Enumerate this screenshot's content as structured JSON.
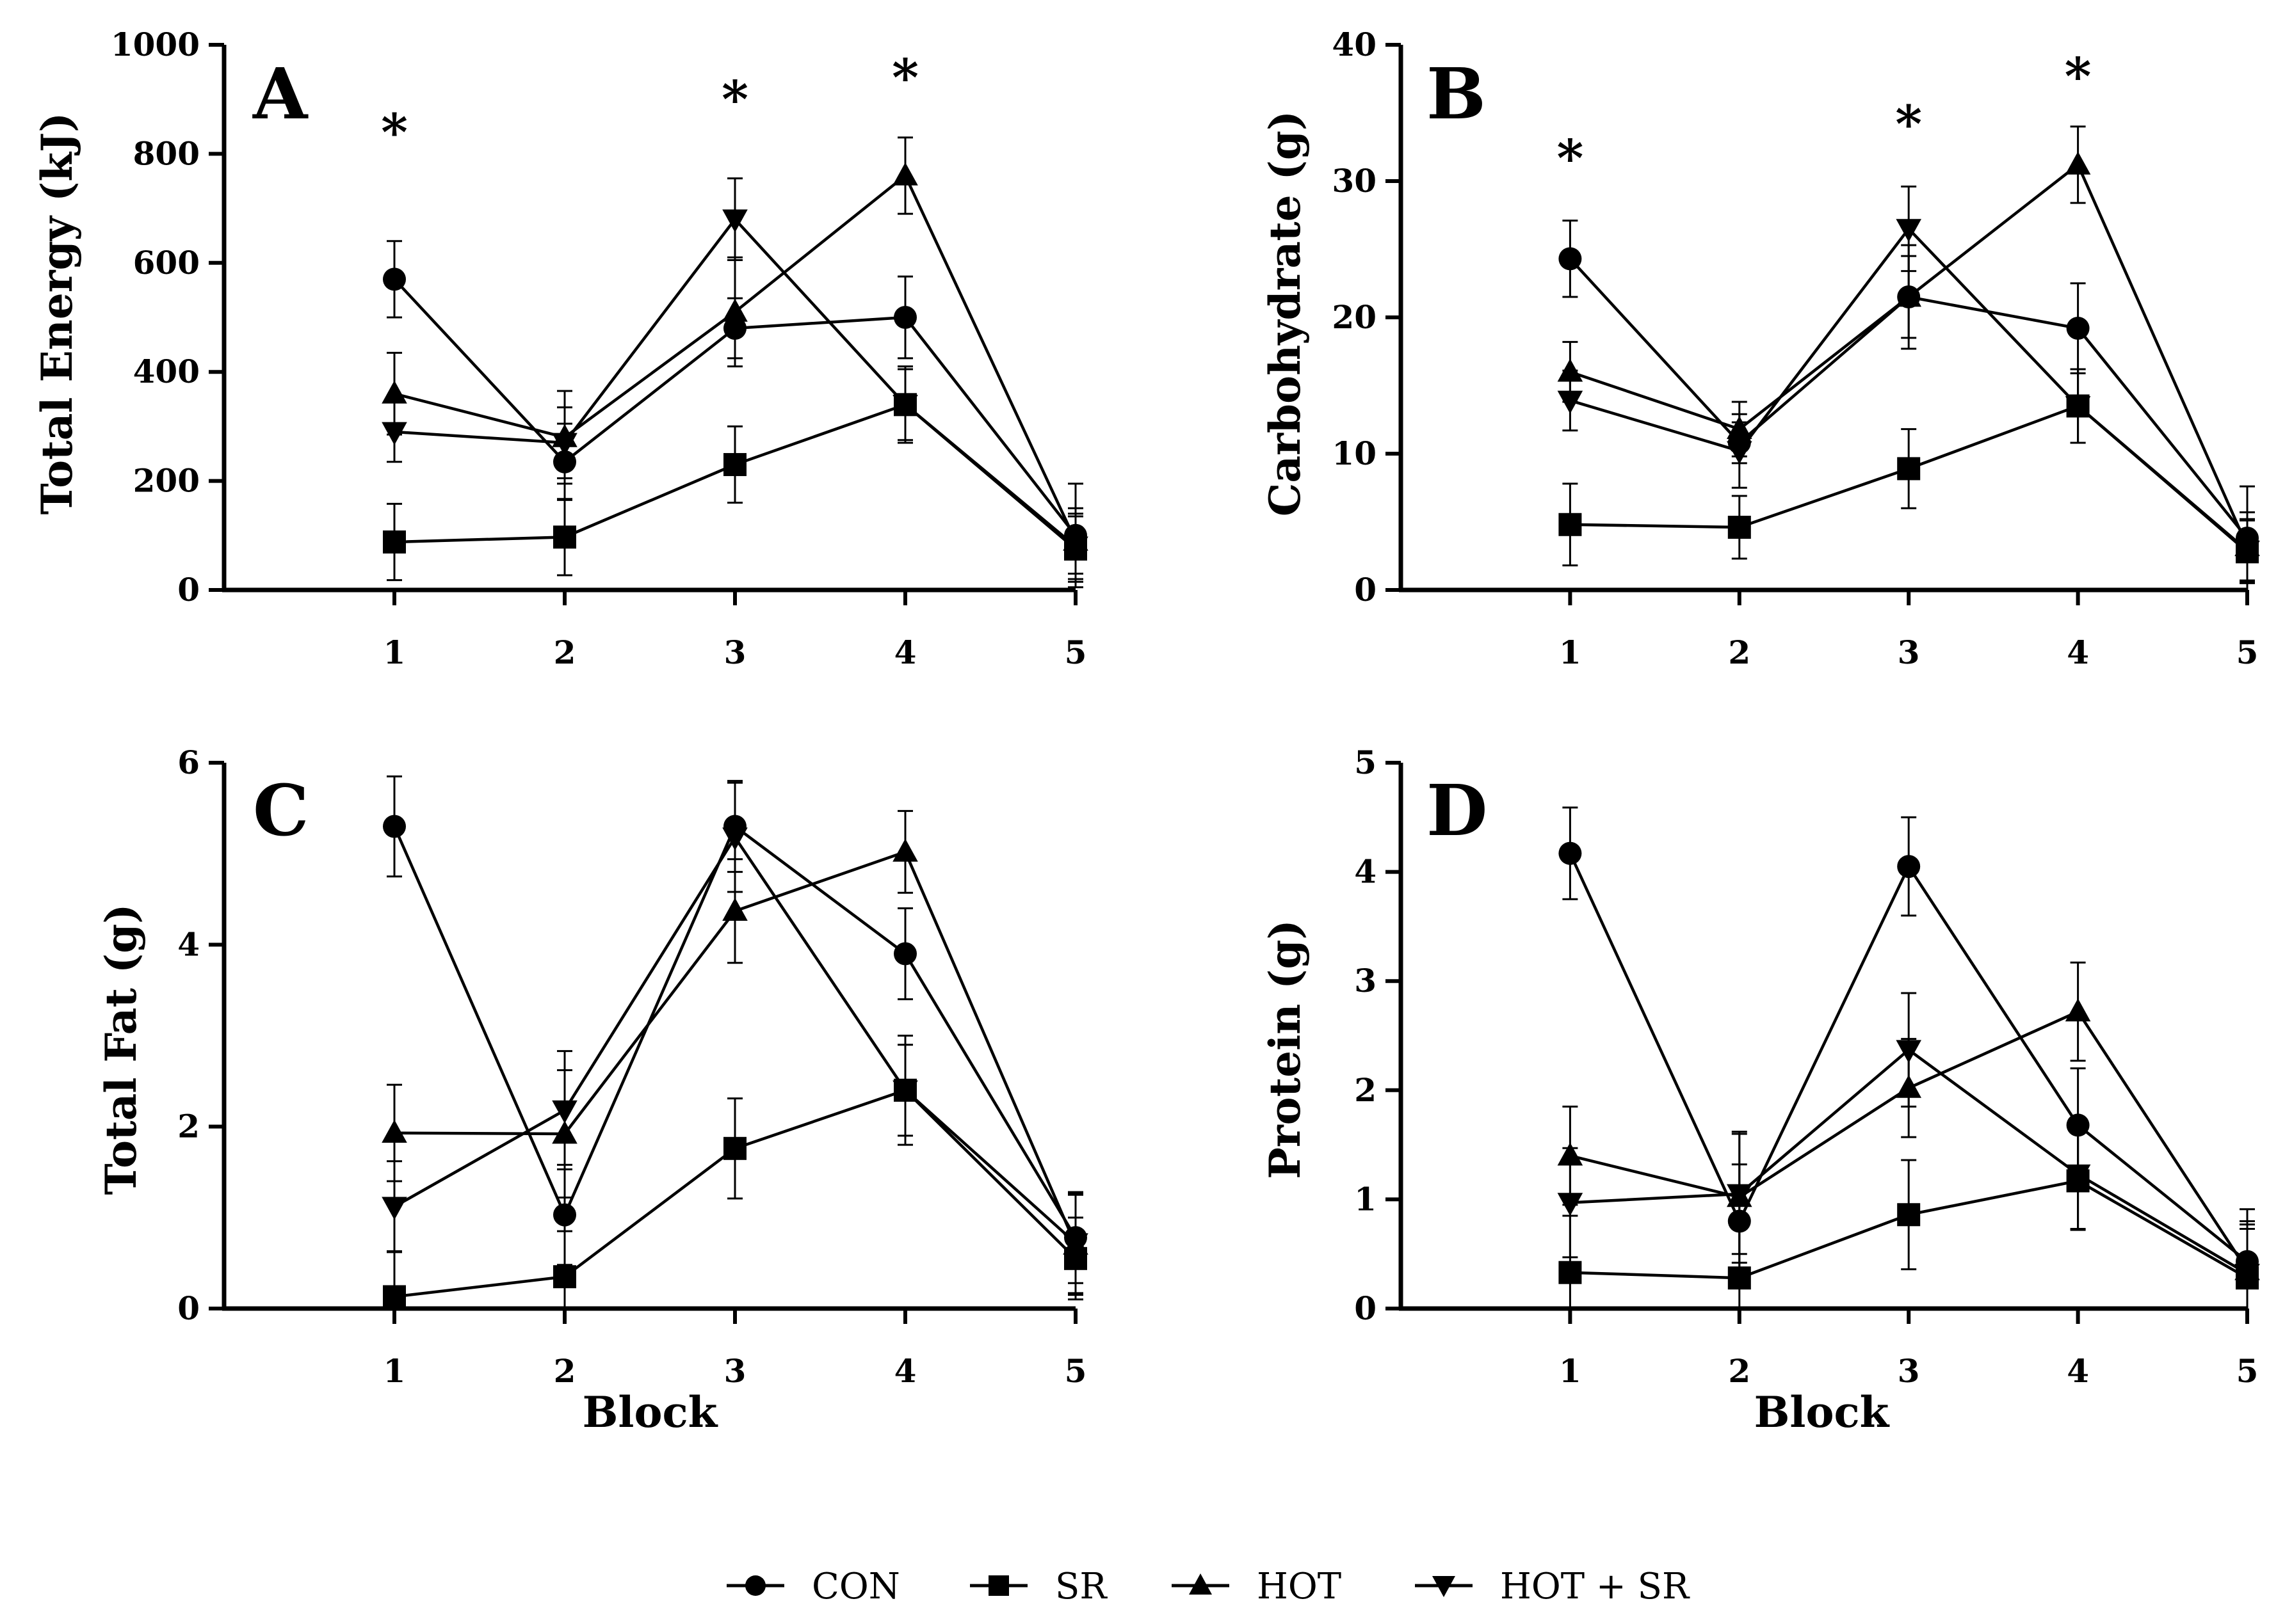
{
  "figure": {
    "series_names": [
      "CON",
      "SR",
      "HOT",
      "HOT + SR"
    ],
    "series_markers": [
      "circle",
      "square",
      "triangle-up",
      "triangle-down"
    ],
    "colors": {
      "line": "#000000",
      "background": "#ffffff"
    }
  },
  "chart_data": [
    {
      "type": "line",
      "panel": "A",
      "title": "",
      "xlabel": "",
      "ylabel": "Total Energy (kJ)",
      "x": [
        1,
        2,
        3,
        4,
        5
      ],
      "xticks": [
        "1",
        "2",
        "3",
        "4",
        "5"
      ],
      "xlim": [
        0,
        5
      ],
      "ylim": [
        0,
        1000
      ],
      "yticks": [
        "0",
        "200",
        "400",
        "600",
        "800",
        "1000"
      ],
      "significance": [
        {
          "x": 1,
          "y": 860,
          "label": "*"
        },
        {
          "x": 3,
          "y": 920,
          "label": "*"
        },
        {
          "x": 4,
          "y": 960,
          "label": "*"
        }
      ],
      "series": [
        {
          "name": "CON",
          "values": [
            570,
            235,
            480,
            500,
            100
          ],
          "errors": [
            70,
            70,
            55,
            75,
            95
          ]
        },
        {
          "name": "SR",
          "values": [
            88,
            97,
            230,
            340,
            75
          ],
          "errors": [
            70,
            70,
            70,
            65,
            60
          ]
        },
        {
          "name": "HOT",
          "values": [
            360,
            280,
            510,
            760,
            90
          ],
          "errors": [
            75,
            85,
            100,
            70,
            60
          ]
        },
        {
          "name": "HOT + SR",
          "values": [
            290,
            270,
            680,
            340,
            80
          ],
          "errors": [
            55,
            65,
            75,
            70,
            60
          ]
        }
      ]
    },
    {
      "type": "line",
      "panel": "B",
      "title": "",
      "xlabel": "",
      "ylabel": "Carbohydrate (g)",
      "x": [
        1,
        2,
        3,
        4,
        5
      ],
      "xticks": [
        "1",
        "2",
        "3",
        "4",
        "5"
      ],
      "xlim": [
        0,
        5
      ],
      "ylim": [
        0,
        40
      ],
      "yticks": [
        "0",
        "10",
        "20",
        "30",
        "40"
      ],
      "significance": [
        {
          "x": 1,
          "y": 32.5,
          "label": "*"
        },
        {
          "x": 3,
          "y": 35,
          "label": "*"
        },
        {
          "x": 4,
          "y": 38.5,
          "label": "*"
        }
      ],
      "series": [
        {
          "name": "CON",
          "values": [
            24.3,
            10.8,
            21.5,
            19.2,
            3.8
          ],
          "errors": [
            2.8,
            1.5,
            3.0,
            3.3,
            3.8
          ]
        },
        {
          "name": "SR",
          "values": [
            4.8,
            4.6,
            8.9,
            13.5,
            2.8
          ],
          "errors": [
            3.0,
            2.3,
            2.9,
            2.7,
            2.3
          ]
        },
        {
          "name": "HOT",
          "values": [
            16.0,
            11.8,
            21.5,
            31.2,
            3.2
          ],
          "errors": [
            2.2,
            2.0,
            3.8,
            2.8,
            2.5
          ]
        },
        {
          "name": "HOT + SR",
          "values": [
            13.9,
            10.2,
            26.5,
            13.5,
            2.9
          ],
          "errors": [
            2.2,
            2.7,
            3.1,
            2.7,
            2.3
          ]
        }
      ]
    },
    {
      "type": "line",
      "panel": "C",
      "title": "",
      "xlabel": "Block",
      "ylabel": "Total Fat (g)",
      "x": [
        1,
        2,
        3,
        4,
        5
      ],
      "xticks": [
        "1",
        "2",
        "3",
        "4",
        "5"
      ],
      "xlim": [
        0,
        5
      ],
      "ylim": [
        0,
        6
      ],
      "yticks": [
        "0",
        "2",
        "4",
        "6"
      ],
      "significance": [],
      "series": [
        {
          "name": "CON",
          "values": [
            5.3,
            1.03,
            5.3,
            3.9,
            0.78
          ],
          "errors": [
            0.55,
            0.55,
            0.5,
            0.5,
            0.5
          ]
        },
        {
          "name": "SR",
          "values": [
            0.13,
            0.35,
            1.76,
            2.4,
            0.55
          ],
          "errors": [
            0.5,
            0.5,
            0.55,
            0.6,
            0.45
          ]
        },
        {
          "name": "HOT",
          "values": [
            1.93,
            1.92,
            4.37,
            5.02,
            0.7
          ],
          "errors": [
            0.53,
            0.7,
            0.57,
            0.45,
            0.55
          ]
        },
        {
          "name": "HOT + SR",
          "values": [
            1.12,
            2.18,
            5.18,
            2.4,
            0.72
          ],
          "errors": [
            0.5,
            0.65,
            0.6,
            0.5,
            0.55
          ]
        }
      ]
    },
    {
      "type": "line",
      "panel": "D",
      "title": "",
      "xlabel": "Block",
      "ylabel": "Protein (g)",
      "x": [
        1,
        2,
        3,
        4,
        5
      ],
      "xticks": [
        "1",
        "2",
        "3",
        "4",
        "5"
      ],
      "xlim": [
        0,
        5
      ],
      "ylim": [
        0,
        5
      ],
      "yticks": [
        "0",
        "1",
        "2",
        "3",
        "4",
        "5"
      ],
      "significance": [],
      "series": [
        {
          "name": "CON",
          "values": [
            4.17,
            0.8,
            4.05,
            1.68,
            0.43
          ],
          "errors": [
            0.42,
            0.52,
            0.45,
            0.52,
            0.48
          ]
        },
        {
          "name": "SR",
          "values": [
            0.33,
            0.28,
            0.86,
            1.17,
            0.28
          ],
          "errors": [
            0.52,
            0.5,
            0.5,
            0.45,
            0.45
          ]
        },
        {
          "name": "HOT",
          "values": [
            1.4,
            1.02,
            2.02,
            2.72,
            0.35
          ],
          "errors": [
            0.45,
            0.6,
            0.45,
            0.45,
            0.45
          ]
        },
        {
          "name": "HOT + SR",
          "values": [
            0.97,
            1.05,
            2.37,
            1.23,
            0.32
          ],
          "errors": [
            0.5,
            0.55,
            0.52,
            0.5,
            0.45
          ]
        }
      ]
    }
  ]
}
